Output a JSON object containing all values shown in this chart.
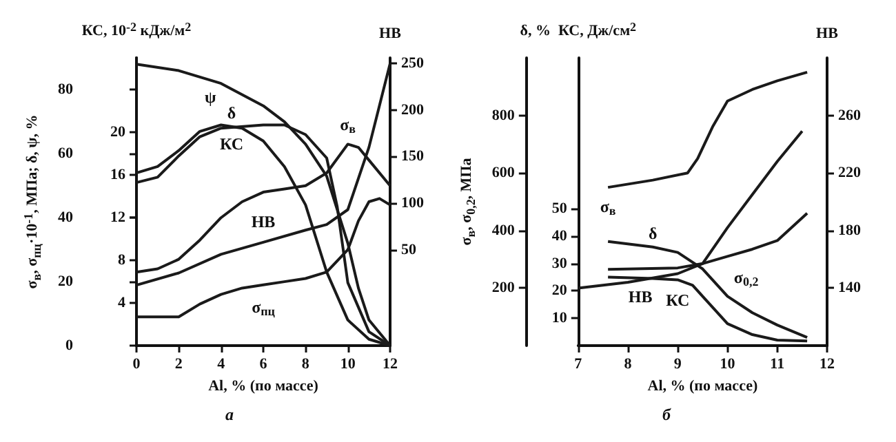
{
  "chart_data": [
    {
      "type": "line",
      "xlabel": "Al, % (по массе)",
      "ylabel": "σ$_{в}$, σ$_{пц}$·10$^{-1}$, МПа; δ, ψ, %",
      "y2label": "КС, 10$^{-2}$ кДж/м$^{2}$",
      "y3label": "НВ",
      "annotations": [
        "а"
      ],
      "marker": "none",
      "xlim": [
        0,
        12
      ],
      "xticks": [
        0,
        2,
        4,
        6,
        8,
        10,
        12
      ],
      "ylim": [
        0,
        90
      ],
      "yticks": [
        0,
        20,
        40,
        60,
        80
      ],
      "y2lim": [
        0,
        27
      ],
      "y2ticks": [
        4,
        8,
        12,
        16,
        20
      ],
      "y3lim": [
        -53,
        256
      ],
      "y3ticks": [
        50,
        100,
        150,
        200,
        250
      ],
      "series": [
        {
          "name": "ψ",
          "color": "#1a1a1a",
          "x": [
            0,
            2,
            4,
            6,
            7,
            8,
            9,
            10,
            10.5,
            11,
            12
          ],
          "values": [
            88,
            86,
            82,
            75,
            70,
            63,
            53,
            32,
            18,
            8,
            0
          ]
        },
        {
          "name": "δ",
          "color": "#1a1a1a",
          "x": [
            0,
            1,
            2,
            3,
            4,
            5,
            6,
            7,
            8,
            9,
            10,
            11,
            12
          ],
          "values": [
            54,
            56,
            61,
            67,
            69,
            68,
            64,
            56,
            44,
            23,
            8,
            2,
            0
          ]
        },
        {
          "name": "КС",
          "color": "#1a1a1a",
          "axis": "y2",
          "x": [
            0,
            1,
            2,
            3,
            4,
            6,
            7,
            8,
            9,
            9.5,
            10,
            11,
            12
          ],
          "values": [
            15.3,
            15.8,
            17.8,
            19.6,
            20.4,
            20.7,
            20.7,
            19.8,
            17.6,
            13,
            5.9,
            1.3,
            0
          ]
        },
        {
          "name": "σ$_{в}$",
          "color": "#1a1a1a",
          "x": [
            0,
            1,
            2,
            3,
            4,
            5,
            6,
            7,
            8,
            9,
            10,
            10.5,
            11,
            12
          ],
          "values": [
            23,
            24,
            27,
            33,
            40,
            45,
            48,
            49,
            50,
            54,
            63,
            62,
            58,
            50
          ]
        },
        {
          "name": "НВ",
          "color": "#1a1a1a",
          "axis": "y3",
          "x": [
            0,
            2,
            4,
            6,
            8,
            9,
            10,
            11,
            11.5,
            12
          ],
          "values": [
            12,
            25,
            45,
            58,
            71,
            77,
            93,
            160,
            205,
            250
          ]
        },
        {
          "name": "σ$_{пц}$",
          "color": "#1a1a1a",
          "x": [
            0,
            1,
            2,
            3,
            4,
            5,
            6,
            7,
            8,
            9,
            10,
            10.5,
            11,
            11.5,
            12
          ],
          "values": [
            9,
            9,
            9,
            13,
            16,
            18,
            19,
            20,
            21,
            23,
            30,
            39,
            45,
            46,
            44
          ]
        }
      ]
    },
    {
      "type": "line",
      "xlabel": "Al, % (по массе)",
      "ylabel": "σ$_{в}$, σ$_{0,2}$, МПа",
      "y2label": "δ, %  КС, Дж/см$^{2}$",
      "y3label": "НВ",
      "annotations": [
        "б"
      ],
      "marker": "none",
      "xlim": [
        7,
        12
      ],
      "xticks": [
        7,
        8,
        9,
        10,
        11,
        12
      ],
      "ylim": [
        0,
        1000
      ],
      "yticks": [
        200,
        400,
        600,
        800
      ],
      "y2lim": [
        0,
        105
      ],
      "y2ticks": [
        10,
        20,
        30,
        40,
        50
      ],
      "y3lim": [
        100,
        300
      ],
      "y3ticks": [
        140,
        180,
        220,
        260
      ],
      "series": [
        {
          "name": "σ$_{в}$",
          "color": "#1a1a1a",
          "x": [
            7.6,
            8.5,
            9.2,
            9.4,
            9.7,
            10,
            10.5,
            11,
            11.6
          ],
          "values": [
            550,
            575,
            600,
            650,
            760,
            850,
            890,
            920,
            950
          ]
        },
        {
          "name": "НВ",
          "color": "#1a1a1a",
          "axis": "y3",
          "x": [
            7,
            8,
            9,
            9.5,
            10,
            10.5,
            11,
            11.5
          ],
          "values": [
            140,
            144,
            150,
            157,
            182,
            205,
            228,
            249
          ]
        },
        {
          "name": "σ$_{0,2}$",
          "color": "#1a1a1a",
          "x": [
            7.6,
            9,
            9.5,
            10,
            10.5,
            11,
            11.6
          ],
          "values": [
            265,
            270,
            285,
            310,
            335,
            365,
            460
          ]
        },
        {
          "name": "δ",
          "color": "#1a1a1a",
          "axis": "y2",
          "x": [
            7.6,
            8.5,
            9,
            9.5,
            10,
            10.5,
            11,
            11.6
          ],
          "values": [
            38,
            36,
            34,
            28,
            18,
            12,
            7.5,
            3
          ]
        },
        {
          "name": "КС",
          "color": "#1a1a1a",
          "axis": "y2",
          "x": [
            7.6,
            8.5,
            9,
            9.3,
            9.5,
            10,
            10.5,
            11,
            11.6
          ],
          "values": [
            25,
            24.5,
            24,
            22,
            18,
            8,
            4,
            2,
            1.7
          ]
        }
      ]
    }
  ]
}
